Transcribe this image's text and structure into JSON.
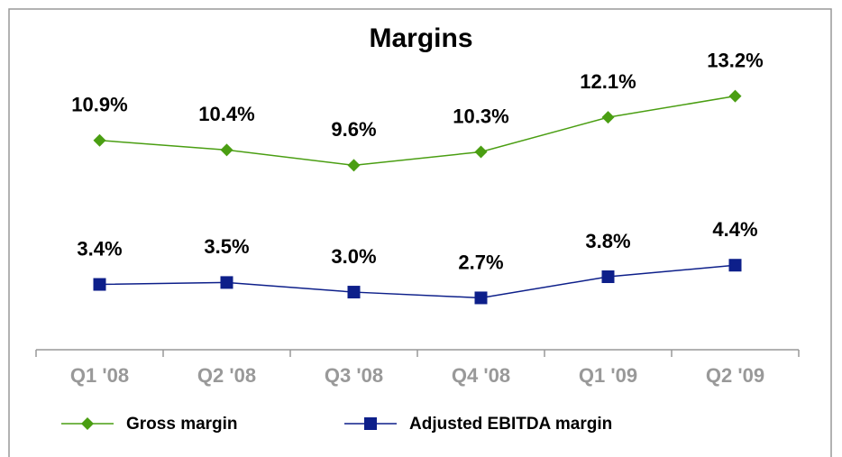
{
  "chart_data": {
    "type": "line",
    "title": "Margins",
    "categories": [
      "Q1 '08",
      "Q2 '08",
      "Q3 '08",
      "Q4 '08",
      "Q1 '09",
      "Q2 '09"
    ],
    "series": [
      {
        "name": "Gross margin",
        "color": "#4a9e12",
        "marker": "diamond",
        "values": [
          10.9,
          10.4,
          9.6,
          10.3,
          12.1,
          13.2
        ],
        "value_labels": [
          "10.9%",
          "10.4%",
          "9.6%",
          "10.3%",
          "12.1%",
          "13.2%"
        ]
      },
      {
        "name": "Adjusted EBITDA margin",
        "color": "#0d1f8a",
        "marker": "square",
        "values": [
          3.4,
          3.5,
          3.0,
          2.7,
          3.8,
          4.4
        ],
        "value_labels": [
          "3.4%",
          "3.5%",
          "3.0%",
          "2.7%",
          "3.8%",
          "4.4%"
        ]
      }
    ],
    "ylim": [
      0,
      16
    ],
    "legend": "bottom"
  }
}
